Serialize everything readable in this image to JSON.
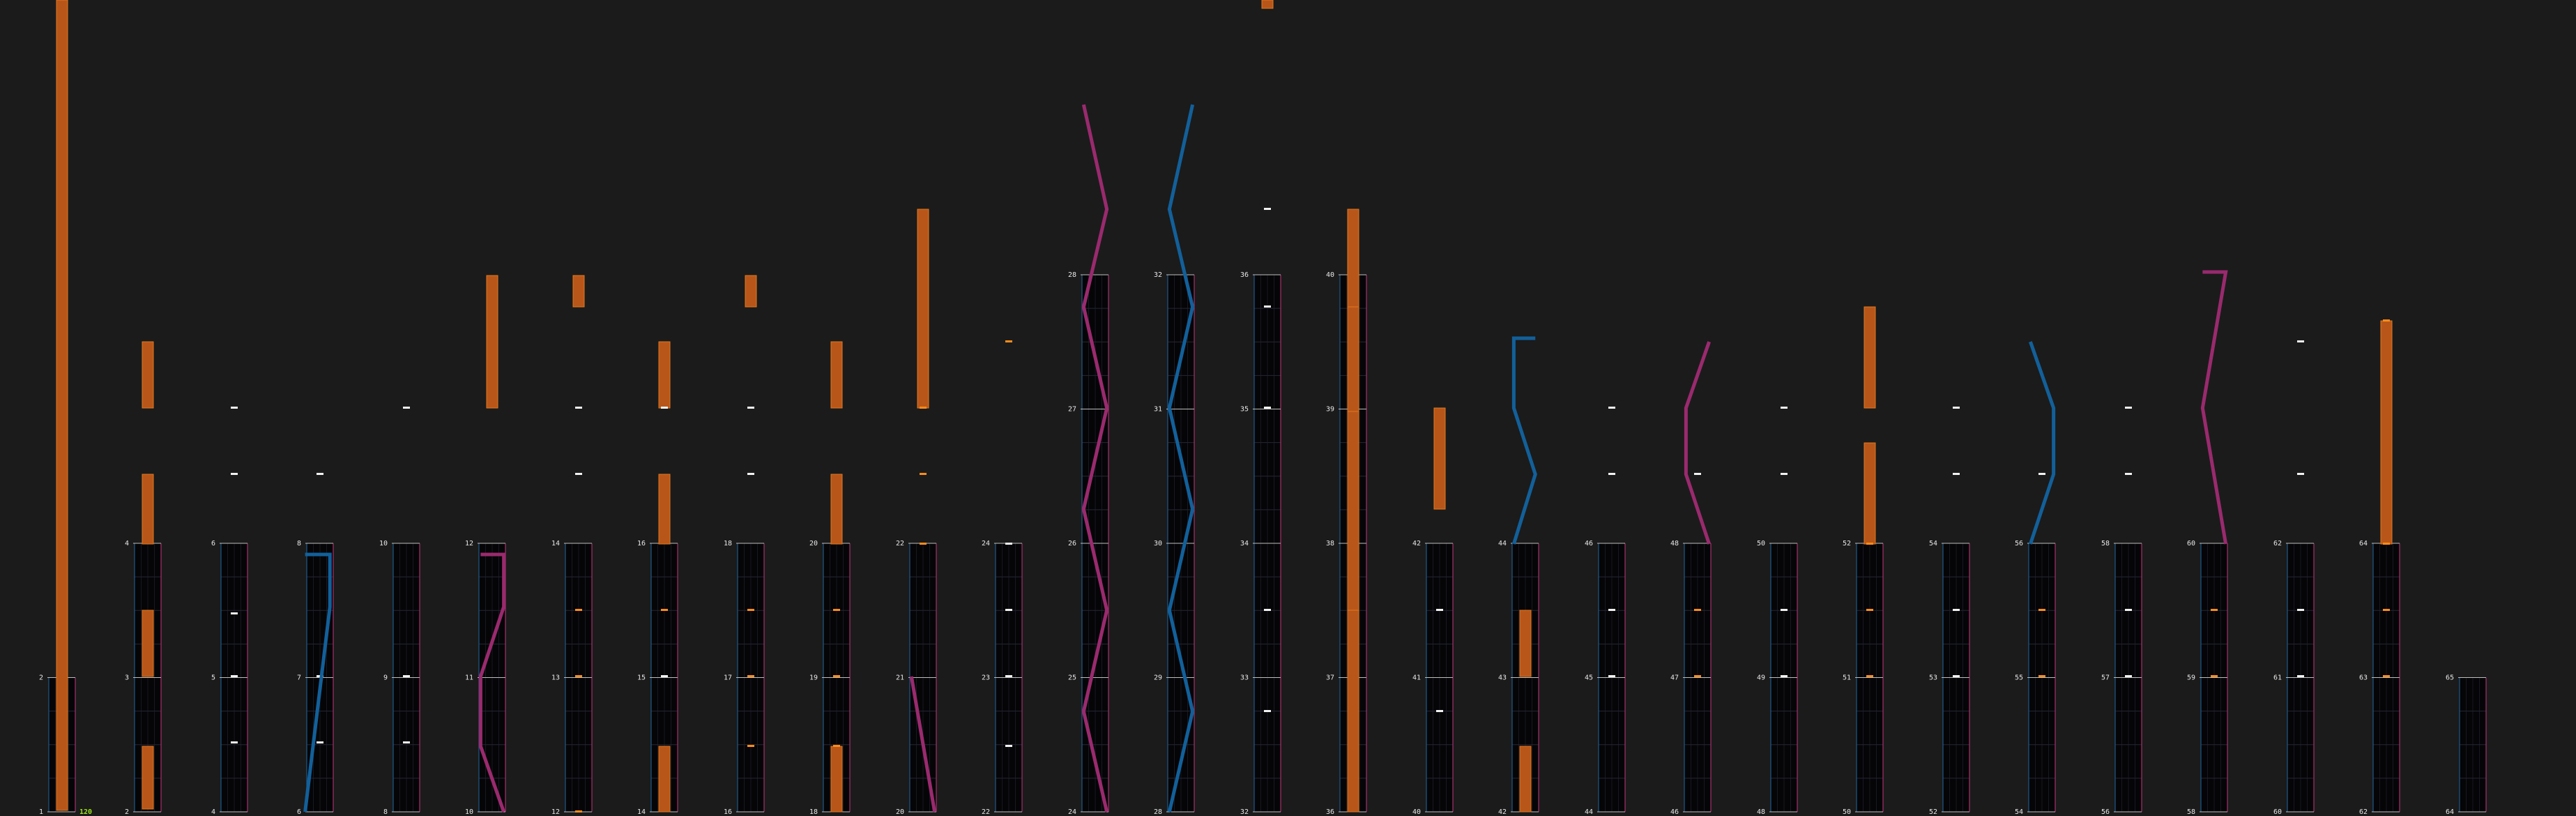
{
  "chart": {
    "bpm_label": "120",
    "colors": {
      "background": "#1b1b1b",
      "lane": "#050507",
      "grid": "#262636",
      "left_rail": "#1d5a8c",
      "right_rail": "#a8306e",
      "tap_note": "#ff8c1a",
      "hold_fill": "#b8561a",
      "hold_edge": "#e0781c",
      "mine": "#f2f2f2",
      "slide_blue": "#12609a",
      "slide_magenta": "#9a2a6e",
      "bpm_text": "#9be31a"
    },
    "columns": [
      {
        "labels": [
          "1",
          "2"
        ]
      },
      {
        "labels": [
          "2",
          "3",
          "4"
        ]
      },
      {
        "labels": [
          "4",
          "5",
          "6"
        ]
      },
      {
        "labels": [
          "6",
          "7",
          "8"
        ]
      },
      {
        "labels": [
          "8",
          "9",
          "10"
        ]
      },
      {
        "labels": [
          "10",
          "11",
          "12"
        ]
      },
      {
        "labels": [
          "12",
          "13",
          "14"
        ]
      },
      {
        "labels": [
          "14",
          "15",
          "16"
        ]
      },
      {
        "labels": [
          "16",
          "17",
          "18"
        ]
      },
      {
        "labels": [
          "18",
          "19",
          "20"
        ]
      },
      {
        "labels": [
          "20",
          "21",
          "22"
        ]
      },
      {
        "labels": [
          "22",
          "23",
          "24"
        ]
      },
      {
        "labels": [
          "24",
          "25",
          "26",
          "27",
          "28"
        ]
      },
      {
        "labels": [
          "28",
          "29",
          "30",
          "31",
          "32"
        ]
      },
      {
        "labels": [
          "32",
          "33",
          "34",
          "35",
          "36"
        ]
      },
      {
        "labels": [
          "36",
          "37",
          "38",
          "39",
          "40"
        ]
      },
      {
        "labels": [
          "40",
          "41",
          "42"
        ]
      },
      {
        "labels": [
          "42",
          "43",
          "44"
        ]
      },
      {
        "labels": [
          "44",
          "45",
          "46"
        ]
      },
      {
        "labels": [
          "46",
          "47",
          "48"
        ]
      },
      {
        "labels": [
          "48",
          "49",
          "50"
        ]
      },
      {
        "labels": [
          "50",
          "51",
          "52"
        ]
      },
      {
        "labels": [
          "52",
          "53",
          "54"
        ]
      },
      {
        "labels": [
          "54",
          "55",
          "56"
        ]
      },
      {
        "labels": [
          "56",
          "57",
          "58"
        ]
      },
      {
        "labels": [
          "58",
          "59",
          "60"
        ]
      },
      {
        "labels": [
          "60",
          "61",
          "62"
        ]
      },
      {
        "labels": [
          "62",
          "63",
          "64"
        ]
      },
      {
        "labels": [
          "64",
          "65"
        ]
      }
    ]
  }
}
